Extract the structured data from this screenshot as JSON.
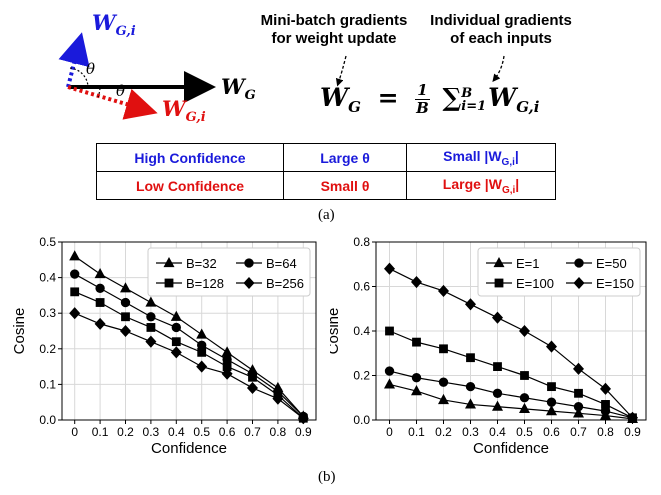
{
  "diagram": {
    "labels": {
      "wgi_top": "W",
      "wgi_top_sub": "G,i",
      "theta_top": "θ",
      "theta_bottom": "θ",
      "wg": "W",
      "wg_sub": "G",
      "wgi_bottom": "W",
      "wgi_bottom_sub": "G,i"
    },
    "colors": {
      "blue": "#1a1adb",
      "red": "#e01010",
      "black": "#000000"
    }
  },
  "headers": {
    "mini_batch_line1": "Mini-batch gradients",
    "mini_batch_line2": "for weight update",
    "individual_line1": "Individual gradients",
    "individual_line2": "of each inputs"
  },
  "formula": {
    "lhs": "W",
    "lhs_sub": "G",
    "eq": "=",
    "num": "1",
    "den": "B",
    "sum": "∑",
    "sub_lower": "i=1",
    "sub_upper": "B",
    "rhs": "W",
    "rhs_sub": "G,i"
  },
  "table": {
    "rows": [
      {
        "c1": "High Confidence",
        "c2": "Large θ",
        "c3_pre": "Small |W",
        "c3_sub": "G,i",
        "c3_post": "|",
        "color": "blue"
      },
      {
        "c1": "Low Confidence",
        "c2": "Small θ",
        "c3_pre": "Large |W",
        "c3_sub": "G,i",
        "c3_post": "|",
        "color": "red"
      }
    ]
  },
  "captions": {
    "a": "(a)",
    "b": "(b)"
  },
  "chart_data": [
    {
      "type": "line",
      "xlabel": "Confidence",
      "ylabel": "Cosine",
      "categories": [
        "0",
        "0.1",
        "0.2",
        "0.3",
        "0.4",
        "0.5",
        "0.6",
        "0.7",
        "0.8",
        "0.9"
      ],
      "x": [
        0,
        0.1,
        0.2,
        0.3,
        0.4,
        0.5,
        0.6,
        0.7,
        0.8,
        0.9
      ],
      "ylim": [
        0,
        0.5
      ],
      "yticks": [
        "0.0",
        "0.1",
        "0.2",
        "0.3",
        "0.4",
        "0.5"
      ],
      "grid": true,
      "legend_position": "top-right",
      "series": [
        {
          "name": "B=32",
          "marker": "triangle",
          "values": [
            0.46,
            0.41,
            0.37,
            0.33,
            0.29,
            0.24,
            0.19,
            0.14,
            0.09,
            0.01
          ]
        },
        {
          "name": "B=64",
          "marker": "circle",
          "values": [
            0.41,
            0.37,
            0.33,
            0.29,
            0.26,
            0.21,
            0.17,
            0.13,
            0.08,
            0.01
          ]
        },
        {
          "name": "B=128",
          "marker": "square",
          "values": [
            0.36,
            0.33,
            0.29,
            0.26,
            0.22,
            0.19,
            0.15,
            0.12,
            0.07,
            0.005
          ]
        },
        {
          "name": "B=256",
          "marker": "diamond",
          "values": [
            0.3,
            0.27,
            0.25,
            0.22,
            0.19,
            0.15,
            0.13,
            0.09,
            0.06,
            0.005
          ]
        }
      ]
    },
    {
      "type": "line",
      "xlabel": "Confidence",
      "ylabel": "Cosine",
      "categories": [
        "0",
        "0.1",
        "0.2",
        "0.3",
        "0.4",
        "0.5",
        "0.6",
        "0.7",
        "0.8",
        "0.9"
      ],
      "x": [
        0,
        0.1,
        0.2,
        0.3,
        0.4,
        0.5,
        0.6,
        0.7,
        0.8,
        0.9
      ],
      "ylim": [
        0,
        0.8
      ],
      "yticks": [
        "0.0",
        "0.2",
        "0.4",
        "0.6",
        "0.8"
      ],
      "grid": true,
      "legend_position": "top-right",
      "series": [
        {
          "name": "E=1",
          "marker": "triangle",
          "values": [
            0.16,
            0.13,
            0.09,
            0.07,
            0.06,
            0.05,
            0.04,
            0.03,
            0.02,
            0.005
          ]
        },
        {
          "name": "E=50",
          "marker": "circle",
          "values": [
            0.22,
            0.19,
            0.17,
            0.15,
            0.12,
            0.1,
            0.08,
            0.06,
            0.04,
            0.01
          ]
        },
        {
          "name": "E=100",
          "marker": "square",
          "values": [
            0.4,
            0.35,
            0.32,
            0.28,
            0.24,
            0.2,
            0.15,
            0.12,
            0.07,
            0.01
          ]
        },
        {
          "name": "E=150",
          "marker": "diamond",
          "values": [
            0.68,
            0.62,
            0.58,
            0.52,
            0.46,
            0.4,
            0.33,
            0.23,
            0.14,
            0.01
          ]
        }
      ]
    }
  ]
}
